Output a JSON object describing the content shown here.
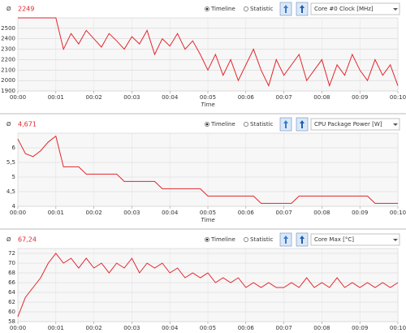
{
  "chart_data": [
    {
      "type": "line",
      "avg_symbol": "Ø",
      "average": 2249,
      "options": [
        "Timeline",
        "Statistic"
      ],
      "selected_index": 0,
      "sensor": "Core #0 Clock [MHz]",
      "x_label": "Time",
      "xlim": [
        0,
        10
      ],
      "ylim": [
        1900,
        2600
      ],
      "xticks": [
        {
          "value": 0,
          "label": "00:00"
        },
        {
          "value": 1,
          "label": "00:01"
        },
        {
          "value": 2,
          "label": "00:02"
        },
        {
          "value": 3,
          "label": "00:03"
        },
        {
          "value": 4,
          "label": "00:04"
        },
        {
          "value": 5,
          "label": "00:05"
        },
        {
          "value": 6,
          "label": "00:06"
        },
        {
          "value": 7,
          "label": "00:07"
        },
        {
          "value": 8,
          "label": "00:08"
        },
        {
          "value": 9,
          "label": "00:09"
        },
        {
          "value": 10,
          "label": "00:10"
        }
      ],
      "yticks": [
        1900,
        2000,
        2100,
        2200,
        2300,
        2400,
        2500
      ],
      "grid": true,
      "x": [
        0,
        0.2,
        0.4,
        0.6,
        0.8,
        1,
        1.2,
        1.4,
        1.6,
        1.8,
        2,
        2.2,
        2.4,
        2.6,
        2.8,
        3,
        3.2,
        3.4,
        3.6,
        3.8,
        4,
        4.2,
        4.4,
        4.6,
        4.8,
        5,
        5.2,
        5.4,
        5.6,
        5.8,
        6,
        6.2,
        6.4,
        6.6,
        6.8,
        7,
        7.2,
        7.4,
        7.6,
        7.8,
        8,
        8.2,
        8.4,
        8.6,
        8.8,
        9,
        9.2,
        9.4,
        9.6,
        9.8,
        10
      ],
      "series": [
        {
          "color": "#e3262b",
          "values": [
            2600,
            2600,
            2600,
            2600,
            2600,
            2600,
            2300,
            2450,
            2350,
            2480,
            2400,
            2320,
            2450,
            2380,
            2300,
            2420,
            2350,
            2480,
            2250,
            2400,
            2330,
            2450,
            2300,
            2380,
            2250,
            2100,
            2250,
            2050,
            2200,
            2000,
            2150,
            2300,
            2100,
            1950,
            2200,
            2050,
            2150,
            2250,
            2000,
            2100,
            2200,
            1950,
            2150,
            2050,
            2250,
            2100,
            2000,
            2200,
            2050,
            2150,
            1950
          ]
        }
      ]
    },
    {
      "type": "line",
      "avg_symbol": "Ø",
      "average": 4.671,
      "average_label": "4,671",
      "options": [
        "Timeline",
        "Statistic"
      ],
      "selected_index": 0,
      "sensor": "CPU Package Power [W]",
      "x_label": "Time",
      "xlim": [
        0,
        10
      ],
      "ylim": [
        4,
        6.5
      ],
      "xticks": [
        {
          "value": 0,
          "label": "00:00"
        },
        {
          "value": 1,
          "label": "00:01"
        },
        {
          "value": 2,
          "label": "00:02"
        },
        {
          "value": 3,
          "label": "00:03"
        },
        {
          "value": 4,
          "label": "00:04"
        },
        {
          "value": 5,
          "label": "00:05"
        },
        {
          "value": 6,
          "label": "00:06"
        },
        {
          "value": 7,
          "label": "00:07"
        },
        {
          "value": 8,
          "label": "00:08"
        },
        {
          "value": 9,
          "label": "00:09"
        },
        {
          "value": 10,
          "label": "00:10"
        }
      ],
      "yticks": [
        4,
        {
          "value": 4.5,
          "label": "4,5"
        },
        5,
        {
          "value": 5.5,
          "label": "5,5"
        },
        6
      ],
      "grid": true,
      "x": [
        0,
        0.2,
        0.4,
        0.6,
        0.8,
        1,
        1.2,
        1.4,
        1.6,
        1.8,
        2,
        2.2,
        2.4,
        2.6,
        2.8,
        3,
        3.2,
        3.4,
        3.6,
        3.8,
        4,
        4.2,
        4.4,
        4.6,
        4.8,
        5,
        5.2,
        5.4,
        5.6,
        5.8,
        6,
        6.2,
        6.4,
        6.6,
        6.8,
        7,
        7.2,
        7.4,
        7.6,
        7.8,
        8,
        8.2,
        8.4,
        8.6,
        8.8,
        9,
        9.2,
        9.4,
        9.6,
        9.8,
        10
      ],
      "series": [
        {
          "color": "#e3262b",
          "values": [
            6.3,
            5.8,
            5.7,
            5.9,
            6.2,
            6.4,
            5.35,
            5.35,
            5.35,
            5.1,
            5.1,
            5.1,
            5.1,
            5.1,
            4.85,
            4.85,
            4.85,
            4.85,
            4.85,
            4.6,
            4.6,
            4.6,
            4.6,
            4.6,
            4.6,
            4.35,
            4.35,
            4.35,
            4.35,
            4.35,
            4.35,
            4.35,
            4.1,
            4.1,
            4.1,
            4.1,
            4.1,
            4.35,
            4.35,
            4.35,
            4.35,
            4.35,
            4.35,
            4.35,
            4.35,
            4.35,
            4.35,
            4.1,
            4.1,
            4.1,
            4.1
          ]
        }
      ]
    },
    {
      "type": "line",
      "avg_symbol": "Ø",
      "average": 67.24,
      "average_label": "67,24",
      "options": [
        "Timeline",
        "Statistic"
      ],
      "selected_index": 0,
      "sensor": "Core Max [°C]",
      "xlim": [
        0,
        10
      ],
      "ylim": [
        58,
        73
      ],
      "xticks": [
        {
          "value": 0,
          "label": "00:00"
        },
        {
          "value": 1,
          "label": "00:01"
        },
        {
          "value": 2,
          "label": "00:02"
        },
        {
          "value": 3,
          "label": "00:03"
        },
        {
          "value": 4,
          "label": "00:04"
        },
        {
          "value": 5,
          "label": "00:05"
        },
        {
          "value": 6,
          "label": "00:06"
        },
        {
          "value": 7,
          "label": "00:07"
        },
        {
          "value": 8,
          "label": "00:08"
        },
        {
          "value": 9,
          "label": "00:09"
        },
        {
          "value": 10,
          "label": "00:10"
        }
      ],
      "yticks": [
        58,
        60,
        62,
        64,
        66,
        68,
        70,
        72
      ],
      "grid": true,
      "x": [
        0,
        0.2,
        0.4,
        0.6,
        0.8,
        1,
        1.2,
        1.4,
        1.6,
        1.8,
        2,
        2.2,
        2.4,
        2.6,
        2.8,
        3,
        3.2,
        3.4,
        3.6,
        3.8,
        4,
        4.2,
        4.4,
        4.6,
        4.8,
        5,
        5.2,
        5.4,
        5.6,
        5.8,
        6,
        6.2,
        6.4,
        6.6,
        6.8,
        7,
        7.2,
        7.4,
        7.6,
        7.8,
        8,
        8.2,
        8.4,
        8.6,
        8.8,
        9,
        9.2,
        9.4,
        9.6,
        9.8,
        10
      ],
      "series": [
        {
          "color": "#e3262b",
          "values": [
            59,
            63,
            65,
            67,
            70,
            72,
            70,
            71,
            69,
            71,
            69,
            70,
            68,
            70,
            69,
            71,
            68,
            70,
            69,
            70,
            68,
            69,
            67,
            68,
            67,
            68,
            66,
            67,
            66,
            67,
            65,
            66,
            65,
            66,
            65,
            65,
            66,
            65,
            67,
            65,
            66,
            65,
            67,
            65,
            66,
            65,
            66,
            65,
            66,
            65,
            66
          ]
        }
      ]
    }
  ]
}
